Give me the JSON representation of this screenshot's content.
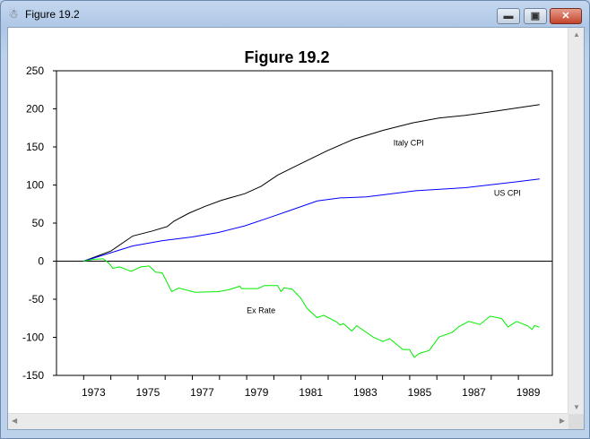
{
  "window": {
    "title": "Figure 19.2",
    "icon": "figure-app-icon"
  },
  "chart_data": {
    "type": "line",
    "title": "Figure 19.2",
    "xlabel": "",
    "ylabel": "",
    "xlim": [
      1972.0,
      1990.25
    ],
    "ylim": [
      -150,
      250
    ],
    "yticks": [
      250,
      200,
      150,
      100,
      50,
      0,
      -50,
      -100,
      -150
    ],
    "xticks_minor": [
      1973,
      1974,
      1975,
      1976,
      1977,
      1978,
      1979,
      1980,
      1981,
      1982,
      1983,
      1984,
      1985,
      1986,
      1987,
      1988,
      1989
    ],
    "xtick_labels": [
      "1973",
      "1975",
      "1977",
      "1979",
      "1981",
      "1983",
      "1985",
      "1987",
      "1989"
    ],
    "zero_line": true,
    "grid": false,
    "series": [
      {
        "name": "Italy CPI",
        "color": "#000000",
        "x": [
          1973.0,
          1974.0,
          1974.81,
          1975.53,
          1976.08,
          1976.32,
          1976.87,
          1977.47,
          1978.08,
          1978.93,
          1979.53,
          1980.14,
          1980.99,
          1981.96,
          1982.93,
          1984.02,
          1985.11,
          1986.08,
          1987.05,
          1988.14,
          1989.11,
          1989.78
        ],
        "y": [
          0,
          13.3,
          33,
          39.6,
          45.5,
          52.5,
          63,
          72,
          80,
          88.6,
          98.4,
          113,
          128,
          145,
          160,
          171.8,
          181.6,
          188,
          191.4,
          197,
          202,
          205.5
        ],
        "label_pos": [
          1984.4,
          152
        ]
      },
      {
        "name": "US CPI",
        "color": "#0000ff",
        "x": [
          1973.0,
          1974.0,
          1974.81,
          1975.9,
          1976.99,
          1977.96,
          1978.93,
          1979.9,
          1980.62,
          1981.6,
          1982.44,
          1983.41,
          1985.23,
          1987.05,
          1988.87,
          1989.78
        ],
        "y": [
          0,
          11,
          20,
          27,
          31.8,
          37.6,
          46.3,
          58,
          67,
          79,
          83,
          84.3,
          92.5,
          96.5,
          104,
          108
        ],
        "label_pos": [
          1988.1,
          86
        ]
      },
      {
        "name": "Ex Rate",
        "color": "#00ee00",
        "x": [
          1973.0,
          1973.35,
          1973.72,
          1973.9,
          1974.08,
          1974.32,
          1974.75,
          1975.11,
          1975.41,
          1975.65,
          1975.89,
          1976.24,
          1976.5,
          1977.11,
          1977.96,
          1978.32,
          1978.75,
          1978.81,
          1979.41,
          1979.65,
          1980.14,
          1980.26,
          1980.38,
          1980.68,
          1980.99,
          1981.23,
          1981.59,
          1981.84,
          1982.32,
          1982.44,
          1982.56,
          1982.87,
          1983.05,
          1983.65,
          1984.02,
          1984.26,
          1984.75,
          1984.99,
          1985.17,
          1985.35,
          1985.72,
          1986.08,
          1986.56,
          1986.81,
          1987.17,
          1987.59,
          1987.96,
          1988.38,
          1988.62,
          1988.93,
          1989.35,
          1989.5,
          1989.59,
          1989.78
        ],
        "y": [
          0,
          2.4,
          3.1,
          -1.6,
          -9.4,
          -7.5,
          -13.3,
          -7.5,
          -6.3,
          -14.5,
          -15.3,
          -40,
          -35.3,
          -40.8,
          -40,
          -37.6,
          -32.9,
          -36,
          -36,
          -32,
          -32,
          -40,
          -35,
          -36.9,
          -48.6,
          -62.4,
          -74.1,
          -71,
          -80,
          -83.9,
          -82,
          -91.8,
          -84.7,
          -99.6,
          -105.5,
          -101.6,
          -116,
          -116,
          -126.3,
          -121.2,
          -117.3,
          -99.6,
          -93.7,
          -85.9,
          -79.2,
          -83.1,
          -72.2,
          -75.3,
          -86.3,
          -79.2,
          -85.1,
          -89.8,
          -84.7,
          -86.7
        ],
        "label_pos": [
          1979.0,
          -68
        ]
      }
    ]
  }
}
